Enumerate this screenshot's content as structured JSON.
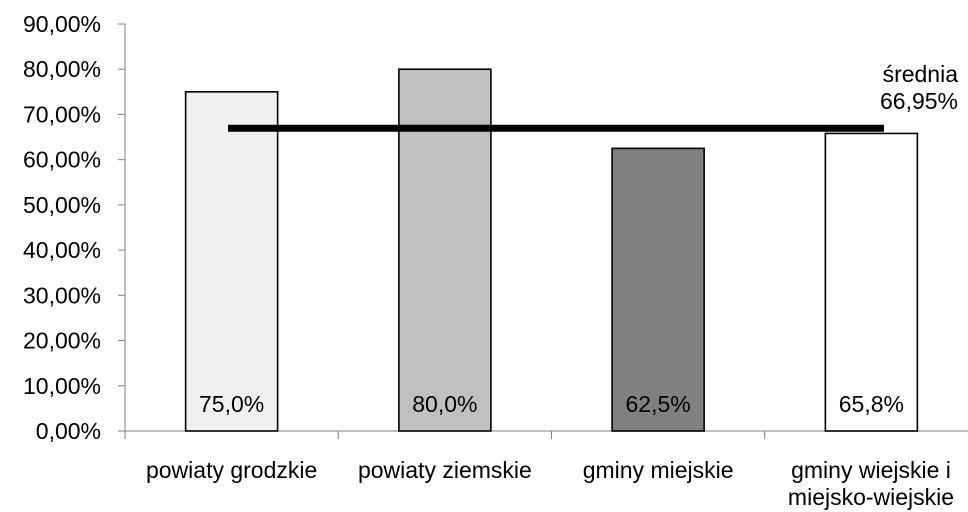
{
  "chart_data": {
    "type": "bar",
    "categories": [
      [
        "powiaty grodzkie"
      ],
      [
        "powiaty ziemskie"
      ],
      [
        "gminy miejskie"
      ],
      [
        "gminy wiejskie i",
        "miejsko-wiejskie"
      ]
    ],
    "values": [
      75.0,
      80.0,
      62.5,
      65.8
    ],
    "data_labels": [
      "75,0%",
      "80,0%",
      "62,5%",
      "65,8%"
    ],
    "bar_colors": [
      "#f0f0f0",
      "#c0c0c0",
      "#808080",
      "#ffffff"
    ],
    "yticks": [
      0,
      10,
      20,
      30,
      40,
      50,
      60,
      70,
      80,
      90
    ],
    "ytick_labels": [
      "0,00%",
      "10,00%",
      "20,00%",
      "30,00%",
      "40,00%",
      "50,00%",
      "60,00%",
      "70,00%",
      "80,00%",
      "90,00%"
    ],
    "ylim": [
      0,
      90
    ],
    "average": {
      "value": 66.95,
      "label_lines": [
        "średnia",
        "66,95%"
      ]
    },
    "title": "",
    "xlabel": "",
    "ylabel": "",
    "grid": false,
    "legend": "none"
  }
}
